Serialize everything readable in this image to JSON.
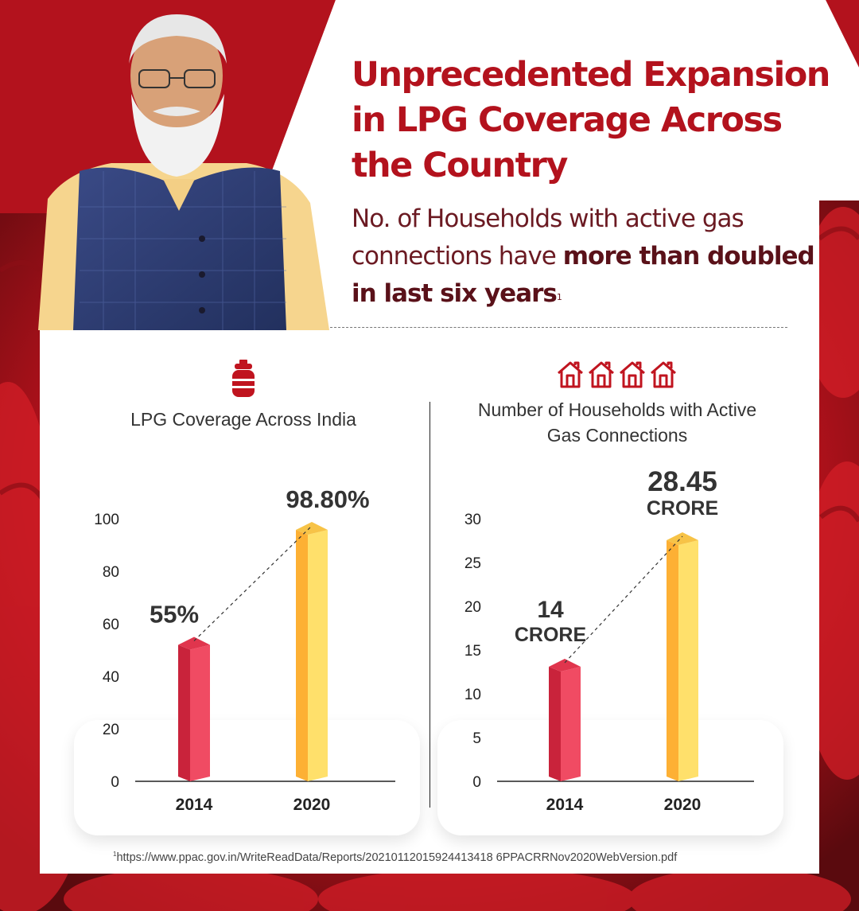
{
  "header": {
    "title": "Unprecedented Expansion in LPG Coverage Across the Country",
    "subtitle_plain": "No. of Households with active gas connections have ",
    "subtitle_bold": "more than doubled in last six years",
    "subtitle_ref": "1"
  },
  "colors": {
    "brand_red": "#b3121d",
    "bar_2014_front": "#f04b63",
    "bar_2014_side": "#c9233b",
    "bar_2020_front": "#fdb034",
    "bar_2020_side": "#ffe06b"
  },
  "icons": {
    "left": "gas-cylinder-icon",
    "right": "houses-icon"
  },
  "chart_data": [
    {
      "type": "bar",
      "title": "LPG Coverage Across India",
      "categories": [
        "2014",
        "2020"
      ],
      "values": [
        55,
        98.8
      ],
      "value_labels": [
        "55%",
        "98.80%"
      ],
      "value_units": [
        "",
        ""
      ],
      "ylim": [
        0,
        100
      ],
      "yticks": [
        "0",
        "20",
        "40",
        "60",
        "80",
        "100"
      ],
      "grid": false,
      "trend_line": "dashed"
    },
    {
      "type": "bar",
      "title": "Number of Households with Active Gas Connections",
      "categories": [
        "2014",
        "2020"
      ],
      "values": [
        14,
        28.45
      ],
      "value_labels": [
        "14",
        "28.45"
      ],
      "value_units": [
        "CRORE",
        "CRORE"
      ],
      "ylim": [
        0,
        30
      ],
      "yticks": [
        "0",
        "5",
        "10",
        "15",
        "20",
        "25",
        "30"
      ],
      "grid": false,
      "trend_line": "dashed"
    }
  ],
  "footnote": {
    "ref": "1",
    "text": "https://www.ppac.gov.in/WriteReadData/Reports/20210112015924413418 6PPACRRNov2020WebVersion.pdf"
  }
}
